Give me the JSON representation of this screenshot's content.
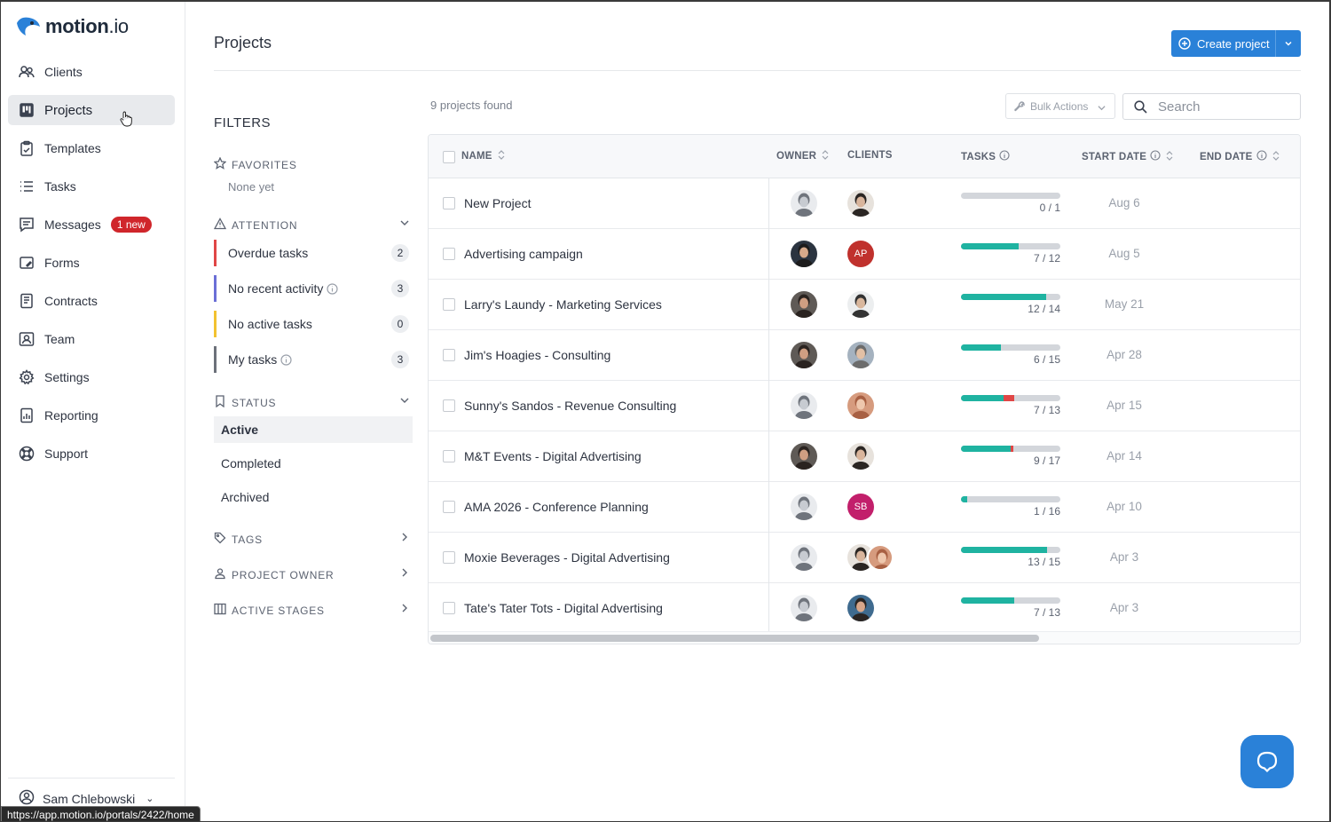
{
  "app": {
    "logo_text": "motion",
    "logo_suffix": ".io"
  },
  "sidebar": {
    "items": [
      {
        "label": "Clients",
        "icon": "users-icon"
      },
      {
        "label": "Projects",
        "icon": "projects-icon",
        "active": true
      },
      {
        "label": "Templates",
        "icon": "clipboard-icon"
      },
      {
        "label": "Tasks",
        "icon": "list-icon"
      },
      {
        "label": "Messages",
        "icon": "messages-icon",
        "badge": "1 new"
      },
      {
        "label": "Forms",
        "icon": "forms-icon"
      },
      {
        "label": "Contracts",
        "icon": "contract-icon"
      },
      {
        "label": "Team",
        "icon": "team-icon"
      },
      {
        "label": "Settings",
        "icon": "gear-icon"
      },
      {
        "label": "Reporting",
        "icon": "reporting-icon"
      },
      {
        "label": "Support",
        "icon": "lifebuoy-icon"
      }
    ],
    "user_name": "Sam Chlebowski",
    "status_url": "https://app.motion.io/portals/2422/home"
  },
  "header": {
    "title": "Projects",
    "create_label": "Create project"
  },
  "filters": {
    "title": "FILTERS",
    "favorites_label": "FAVORITES",
    "favorites_empty": "None yet",
    "attention_label": "ATTENTION",
    "attention_items": [
      {
        "label": "Overdue tasks",
        "count": "2",
        "color": "#e04646",
        "info": false
      },
      {
        "label": "No recent activity",
        "count": "3",
        "color": "#6b6fd6",
        "info": true
      },
      {
        "label": "No active tasks",
        "count": "0",
        "color": "#f2c230",
        "info": false
      },
      {
        "label": "My tasks",
        "count": "3",
        "color": "#6c717a",
        "info": true
      }
    ],
    "status_label": "STATUS",
    "status_items": [
      {
        "label": "Active",
        "active": true
      },
      {
        "label": "Completed",
        "active": false
      },
      {
        "label": "Archived",
        "active": false
      }
    ],
    "tags_label": "TAGS",
    "owner_label": "PROJECT OWNER",
    "stages_label": "ACTIVE STAGES"
  },
  "toolbar": {
    "found_text": "9 projects found",
    "bulk_label": "Bulk Actions",
    "search_placeholder": "Search"
  },
  "table": {
    "columns": {
      "name": "NAME",
      "owner": "OWNER",
      "clients": "CLIENTS",
      "tasks": "TASKS",
      "start": "START DATE",
      "end": "END DATE"
    },
    "rows": [
      {
        "name": "New Project",
        "owner": "person-a",
        "clients": [
          {
            "type": "photo",
            "style": "person-b"
          }
        ],
        "done": 0,
        "overdue": 0,
        "total": 1,
        "tasks": "0 / 1",
        "start": "Aug 6"
      },
      {
        "name": "Advertising campaign",
        "owner": "person-c",
        "clients": [
          {
            "type": "initials",
            "text": "AP",
            "color": "#c0312d"
          }
        ],
        "done": 7,
        "overdue": 0,
        "total": 12,
        "tasks": "7 / 12",
        "start": "Aug 5"
      },
      {
        "name": "Larry's Laundy - Marketing Services",
        "owner": "person-d",
        "clients": [
          {
            "type": "photo",
            "style": "person-e"
          }
        ],
        "done": 12,
        "overdue": 0,
        "total": 14,
        "tasks": "12 / 14",
        "start": "May 21"
      },
      {
        "name": "Jim's Hoagies - Consulting",
        "owner": "person-d",
        "clients": [
          {
            "type": "photo",
            "style": "person-f"
          }
        ],
        "done": 6,
        "overdue": 0,
        "total": 15,
        "tasks": "6 / 15",
        "start": "Apr 28"
      },
      {
        "name": "Sunny's Sandos - Revenue Consulting",
        "owner": "person-a",
        "clients": [
          {
            "type": "photo",
            "style": "person-g"
          }
        ],
        "done": 5.6,
        "overdue": 1.4,
        "total": 13,
        "tasks": "7 / 13",
        "start": "Apr 15"
      },
      {
        "name": "M&T Events - Digital Advertising",
        "owner": "person-d",
        "clients": [
          {
            "type": "photo",
            "style": "person-b"
          }
        ],
        "done": 8.5,
        "overdue": 0.5,
        "total": 17,
        "tasks": "9 / 17",
        "start": "Apr 14"
      },
      {
        "name": "AMA 2026 - Conference Planning",
        "owner": "person-a",
        "clients": [
          {
            "type": "initials",
            "text": "SB",
            "color": "#c21f6b"
          }
        ],
        "done": 1,
        "overdue": 0,
        "total": 16,
        "tasks": "1 / 16",
        "start": "Apr 10"
      },
      {
        "name": "Moxie Beverages - Digital Advertising",
        "owner": "person-a",
        "clients": [
          {
            "type": "photo",
            "style": "person-b"
          },
          {
            "type": "photo",
            "style": "person-g"
          }
        ],
        "done": 13,
        "overdue": 0,
        "total": 15,
        "tasks": "13 / 15",
        "start": "Apr 3"
      },
      {
        "name": "Tate's Tater Tots - Digital Advertising",
        "owner": "person-a",
        "clients": [
          {
            "type": "photo",
            "style": "person-h"
          }
        ],
        "done": 7,
        "overdue": 0,
        "total": 13,
        "tasks": "7 / 13",
        "start": "Apr 3"
      }
    ]
  },
  "colors": {
    "accent": "#2a81d8",
    "progress": "#1fb3a1",
    "overdue": "#e04646",
    "badge": "#d0262b"
  }
}
